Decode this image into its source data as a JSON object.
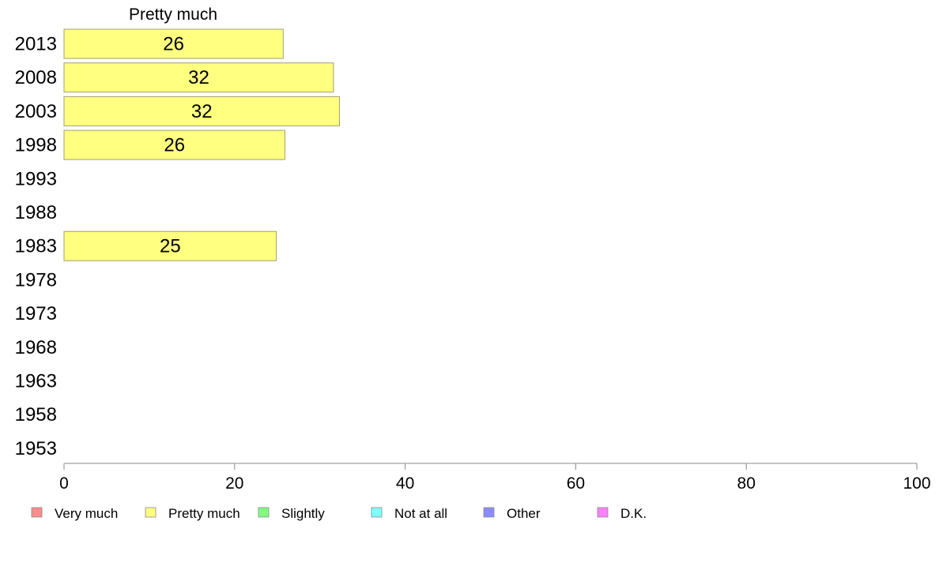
{
  "chart_data": {
    "type": "bar",
    "orientation": "horizontal",
    "series_title": "Pretty much",
    "categories": [
      "2013",
      "2008",
      "2003",
      "1998",
      "1993",
      "1988",
      "1983",
      "1978",
      "1973",
      "1968",
      "1963",
      "1958",
      "1953"
    ],
    "series": [
      {
        "name": "Pretty much",
        "color": "#ffff80",
        "values": [
          25.7,
          31.6,
          32.3,
          25.9,
          null,
          null,
          24.9,
          null,
          null,
          null,
          null,
          null,
          null
        ],
        "labels": [
          "26",
          "32",
          "32",
          "26",
          "",
          "",
          "25",
          "",
          "",
          "",
          "",
          "",
          ""
        ]
      }
    ],
    "xlim": [
      0,
      100
    ],
    "xticks": [
      0,
      20,
      40,
      60,
      80,
      100
    ],
    "grid": false,
    "legend_position": "bottom",
    "legend": [
      {
        "label": "Very much",
        "color": "#ff8c8c"
      },
      {
        "label": "Pretty much",
        "color": "#ffff80"
      },
      {
        "label": "Slightly",
        "color": "#80ff80"
      },
      {
        "label": "Not at all",
        "color": "#80ffff"
      },
      {
        "label": "Other",
        "color": "#8c8cff"
      },
      {
        "label": "D.K.",
        "color": "#ff80ff"
      }
    ]
  }
}
